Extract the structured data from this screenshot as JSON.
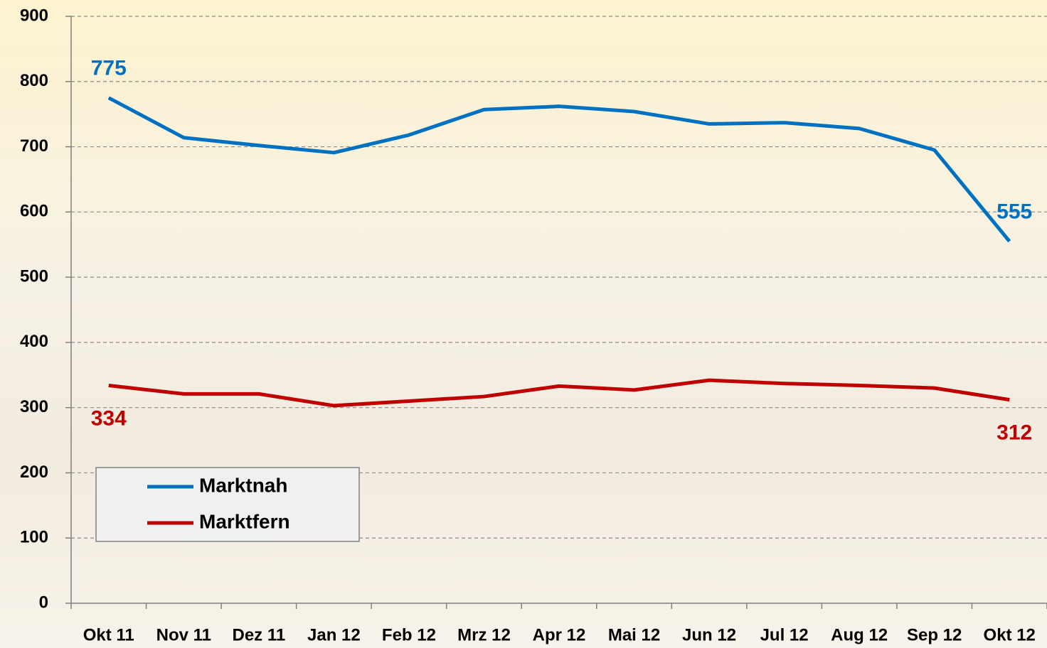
{
  "chart_data": {
    "type": "line",
    "categories": [
      "Okt 11",
      "Nov 11",
      "Dez 11",
      "Jan 12",
      "Feb 12",
      "Mrz 12",
      "Apr 12",
      "Mai 12",
      "Jun 12",
      "Jul 12",
      "Aug 12",
      "Sep 12",
      "Okt 12"
    ],
    "series": [
      {
        "name": "Marktnah",
        "color": "#0070c0",
        "values": [
          775,
          714,
          702,
          691,
          718,
          757,
          762,
          754,
          735,
          737,
          728,
          695,
          555
        ]
      },
      {
        "name": "Marktfern",
        "color": "#c00000",
        "values": [
          334,
          321,
          321,
          303,
          310,
          317,
          333,
          327,
          342,
          337,
          334,
          330,
          312
        ]
      }
    ],
    "ylim": [
      0,
      900
    ],
    "yticks": [
      0,
      100,
      200,
      300,
      400,
      500,
      600,
      700,
      800,
      900
    ],
    "grid": true,
    "legend": "lower left"
  }
}
